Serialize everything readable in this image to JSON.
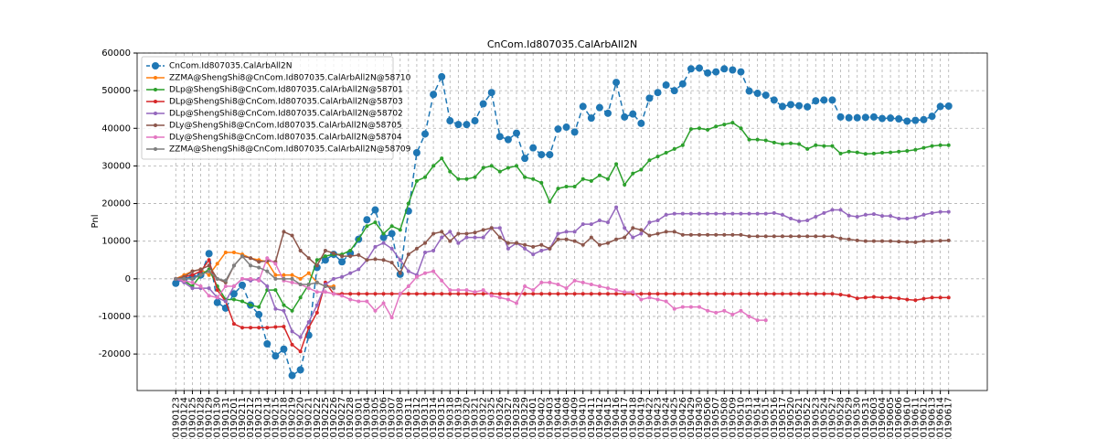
{
  "chart_data": {
    "type": "line",
    "title": "CnCom.Id807035.CalArbAll2N",
    "y_label": "Pnl",
    "categories": [
      "20190123",
      "20190124",
      "20190125",
      "20190128",
      "20190129",
      "20190130",
      "20190131",
      "20190201",
      "20190211",
      "20190212",
      "20190213",
      "20190214",
      "20190215",
      "20190218",
      "20190219",
      "20190220",
      "20190221",
      "20190222",
      "20190225",
      "20190226",
      "20190227",
      "20190228",
      "20190301",
      "20190304",
      "20190305",
      "20190306",
      "20190307",
      "20190308",
      "20190311",
      "20190312",
      "20190313",
      "20190314",
      "20190315",
      "20190318",
      "20190319",
      "20190320",
      "20190321",
      "20190322",
      "20190325",
      "20190326",
      "20190327",
      "20190328",
      "20190329",
      "20190401",
      "20190402",
      "20190403",
      "20190404",
      "20190408",
      "20190409",
      "20190410",
      "20190411",
      "20190412",
      "20190415",
      "20190416",
      "20190417",
      "20190418",
      "20190419",
      "20190422",
      "20190423",
      "20190424",
      "20190425",
      "20190426",
      "20190429",
      "20190430",
      "20190506",
      "20190507",
      "20190508",
      "20190509",
      "20190510",
      "20190513",
      "20190514",
      "20190515",
      "20190516",
      "20190517",
      "20190520",
      "20190521",
      "20190522",
      "20190523",
      "20190524",
      "20190527",
      "20190528",
      "20190529",
      "20190530",
      "20190531",
      "20190603",
      "20190604",
      "20190605",
      "20190606",
      "20190610",
      "20190611",
      "20190612",
      "20190613",
      "20190614",
      "20190617"
    ],
    "series": [
      {
        "name": "CnCom.Id807035.CalArbAll2N",
        "color": "#1f77b4",
        "dashed": true,
        "values": [
          -1200,
          0,
          500,
          1000,
          6700,
          -6300,
          -7800,
          -4000,
          -1700,
          -7000,
          -9500,
          -17300,
          -20500,
          -18700,
          -25700,
          -24200,
          -15000,
          3000,
          5000,
          6500,
          4500,
          6800,
          10500,
          15700,
          18300,
          11000,
          12000,
          1200,
          18000,
          33500,
          38500,
          49000,
          53700,
          42000,
          41000,
          41000,
          42000,
          46500,
          49500,
          37800,
          37000,
          38700,
          32000,
          34800,
          33000,
          33000,
          39800,
          40300,
          39000,
          45800,
          42700,
          45500,
          44000,
          52200,
          43000,
          43800,
          41300,
          48000,
          49500,
          51500,
          50000,
          51800,
          55800,
          56000,
          54700,
          55000,
          55800,
          55500,
          55000,
          49900,
          49300,
          48800,
          47500,
          45800,
          46300,
          46000,
          45700,
          47300,
          47500,
          47500,
          43000,
          42800,
          42800,
          42900,
          43000,
          42600,
          42700,
          42500,
          41900,
          42100,
          42300,
          43200,
          45800,
          45900
        ]
      },
      {
        "name": "ZZMA@ShengShi8@CnCom.Id807035.CalArbAll2N@58710",
        "color": "#ff7f0e",
        "values": [
          0,
          1000,
          2000,
          2500,
          1000,
          4000,
          7000,
          7000,
          6500,
          5500,
          5000,
          4500,
          1000,
          1000,
          1000,
          0,
          1500,
          -1000,
          -2000,
          -2000,
          null,
          null,
          null,
          null,
          null,
          null,
          null,
          null,
          null,
          null,
          null,
          null,
          null,
          null,
          null,
          null,
          null,
          null,
          null,
          null,
          null,
          null,
          null,
          null,
          null,
          null,
          null,
          null,
          null,
          null,
          null,
          null,
          null,
          null,
          null,
          null,
          null,
          null,
          null,
          null,
          null,
          null,
          null,
          null,
          null,
          null,
          null,
          null,
          null,
          null,
          null,
          null,
          null,
          null,
          null,
          null,
          null,
          null,
          null,
          null,
          null,
          null,
          null,
          null,
          null,
          null,
          null,
          null,
          null,
          null,
          null,
          null,
          null,
          null
        ]
      },
      {
        "name": "DLp@ShengShi8@CnCom.Id807035.CalArbAll2N@58701",
        "color": "#2ca02c",
        "values": [
          0,
          -500,
          -2000,
          1000,
          2500,
          -2000,
          -5500,
          -5500,
          -6000,
          -7000,
          -7500,
          -3000,
          -3000,
          -7000,
          -8500,
          -5000,
          -1500,
          5000,
          6000,
          6500,
          6500,
          7500,
          10500,
          14000,
          15000,
          12000,
          14000,
          13000,
          20000,
          26000,
          27000,
          30000,
          32000,
          28500,
          26500,
          26500,
          27000,
          29500,
          30000,
          28500,
          29500,
          30000,
          27000,
          26500,
          25500,
          20500,
          24000,
          24500,
          24500,
          26500,
          26000,
          27500,
          26500,
          30500,
          25000,
          28000,
          29000,
          31500,
          32500,
          33500,
          34500,
          35500,
          39800,
          40000,
          39600,
          40500,
          41000,
          41500,
          40000,
          37000,
          37000,
          36800,
          36200,
          35800,
          36000,
          35800,
          34500,
          35500,
          35300,
          35300,
          33300,
          33800,
          33600,
          33200,
          33300,
          33500,
          33600,
          33800,
          34000,
          34300,
          34800,
          35300,
          35500,
          35500
        ]
      },
      {
        "name": "DLp@ShengShi8@CnCom.Id807035.CalArbAll2N@58703",
        "color": "#d62728",
        "values": [
          0,
          500,
          1000,
          2000,
          5000,
          -3000,
          -6000,
          -12000,
          -13000,
          -13000,
          -13000,
          -13000,
          -12800,
          -12700,
          -17500,
          -19300,
          -13000,
          -9000,
          -1000,
          -4000,
          -4000,
          -4000,
          -4000,
          -4000,
          -4000,
          -4000,
          -4000,
          -4000,
          -4000,
          -4000,
          -4000,
          -4000,
          -4000,
          -4000,
          -4000,
          -4000,
          -4000,
          -4000,
          -4000,
          -4000,
          -4000,
          -4000,
          -4000,
          -4000,
          -4000,
          -4000,
          -4000,
          -4000,
          -4000,
          -4000,
          -4000,
          -4000,
          -4000,
          -4000,
          -4000,
          -4000,
          -4000,
          -4000,
          -4000,
          -4000,
          -4000,
          -4000,
          -4000,
          -4000,
          -4000,
          -4000,
          -4000,
          -4000,
          -4000,
          -4000,
          -4000,
          -4000,
          -4000,
          -4000,
          -4000,
          -4000,
          -4000,
          -4000,
          -4000,
          -4000,
          -4200,
          -4500,
          -5200,
          -5000,
          -4800,
          -5000,
          -5000,
          -5200,
          -5500,
          -5700,
          -5300,
          -5000,
          -5000,
          -5000
        ]
      },
      {
        "name": "DLp@ShengShi8@CnCom.Id807035.CalArbAll2N@58702",
        "color": "#9467bd",
        "values": [
          0,
          -1000,
          -2500,
          -2500,
          -2500,
          -5000,
          -6000,
          -2000,
          0,
          -500,
          0,
          -2000,
          -8000,
          -8500,
          -14000,
          -15500,
          -11500,
          -7000,
          -1500,
          0,
          500,
          1500,
          2500,
          5000,
          8500,
          9500,
          8000,
          5000,
          2000,
          1000,
          7000,
          7500,
          11000,
          12500,
          9500,
          11000,
          11000,
          11000,
          13500,
          13500,
          8000,
          9500,
          8000,
          6500,
          7500,
          8000,
          12000,
          12500,
          12500,
          14500,
          14500,
          15500,
          15000,
          19000,
          13500,
          11000,
          12000,
          15000,
          15500,
          17000,
          17300,
          17300,
          17300,
          17300,
          17300,
          17300,
          17300,
          17300,
          17300,
          17300,
          17300,
          17300,
          17500,
          17000,
          16000,
          15300,
          15500,
          16500,
          17500,
          18300,
          18300,
          16800,
          16500,
          17000,
          17200,
          16700,
          16700,
          16000,
          16000,
          16300,
          17000,
          17500,
          17800,
          17800
        ]
      },
      {
        "name": "DLy@ShengShi8@CnCom.Id807035.CalArbAll2N@58705",
        "color": "#8c564b",
        "values": [
          0,
          500,
          2000,
          2500,
          3500,
          0,
          -1000,
          3500,
          6000,
          5500,
          4500,
          4800,
          4500,
          12500,
          11500,
          7500,
          5500,
          3500,
          7500,
          6800,
          6000,
          6000,
          6300,
          5000,
          5200,
          5000,
          4300,
          1500,
          6500,
          8000,
          9500,
          12000,
          12500,
          10000,
          12000,
          12000,
          12300,
          13000,
          13500,
          11000,
          9500,
          9500,
          9000,
          8500,
          9000,
          8000,
          10500,
          10500,
          10000,
          9000,
          11000,
          9000,
          9500,
          10500,
          11000,
          13500,
          13000,
          11500,
          12000,
          12500,
          12500,
          11700,
          11700,
          11700,
          11700,
          11700,
          11700,
          11700,
          11700,
          11300,
          11300,
          11300,
          11300,
          11300,
          11300,
          11300,
          11300,
          11300,
          11300,
          11300,
          10700,
          10500,
          10200,
          10000,
          10000,
          10000,
          10000,
          9900,
          9800,
          9700,
          10000,
          10000,
          10100,
          10200
        ]
      },
      {
        "name": "DLy@ShengShi8@CnCom.Id807035.CalArbAll2N@58704",
        "color": "#e377c2",
        "values": [
          0,
          -500,
          -1000,
          -2000,
          -4500,
          -5000,
          -2000,
          -2000,
          0,
          0,
          -500,
          5500,
          4000,
          -500,
          -1000,
          -1500,
          -2500,
          -3500,
          -3500,
          -4000,
          -4500,
          -5500,
          -6000,
          -6000,
          -8500,
          -6500,
          -10300,
          -4000,
          -2000,
          500,
          1500,
          2000,
          -500,
          -3000,
          -3000,
          -3000,
          -3500,
          -3000,
          -4500,
          -5000,
          -5500,
          -6500,
          -2000,
          -3000,
          -1000,
          -1000,
          -1500,
          -2500,
          -500,
          -1000,
          -1500,
          -2000,
          -2500,
          -3000,
          -3500,
          -3500,
          -5500,
          -5000,
          -5500,
          -6000,
          -8000,
          -7500,
          -7500,
          -7500,
          -8500,
          -9000,
          -8500,
          -9500,
          -8500,
          -10000,
          -11000,
          -11000,
          null,
          null,
          null,
          null,
          null,
          null,
          null,
          null,
          null,
          null,
          null,
          null,
          null,
          null,
          null,
          null,
          null,
          null,
          null,
          null,
          null,
          null
        ]
      },
      {
        "name": "ZZMA@ShengShi8@CnCom.Id807035.CalArbAll2N@58709",
        "color": "#7f7f7f",
        "values": [
          0,
          0,
          0,
          1000,
          2000,
          0,
          -500,
          3500,
          6000,
          3500,
          3000,
          2000,
          0,
          0,
          0,
          -1500,
          -1500,
          -1000,
          -2000,
          -2500,
          null,
          null,
          null,
          null,
          null,
          null,
          null,
          null,
          null,
          null,
          null,
          null,
          null,
          null,
          null,
          null,
          null,
          null,
          null,
          null,
          null,
          null,
          null,
          null,
          null,
          null,
          null,
          null,
          null,
          null,
          null,
          null,
          null,
          null,
          null,
          null,
          null,
          null,
          null,
          null,
          null,
          null,
          null,
          null,
          null,
          null,
          null,
          null,
          null,
          null,
          null,
          null,
          null,
          null,
          null,
          null,
          null,
          null,
          null,
          null,
          null,
          null,
          null,
          null,
          null,
          null,
          null,
          null,
          null,
          null,
          null,
          null,
          null,
          null
        ]
      }
    ],
    "ylim": [
      -29700,
      60000
    ],
    "yticks": [
      -20000,
      -10000,
      0,
      10000,
      20000,
      30000,
      40000,
      50000,
      60000
    ],
    "grid": true,
    "legend": "upper left"
  }
}
